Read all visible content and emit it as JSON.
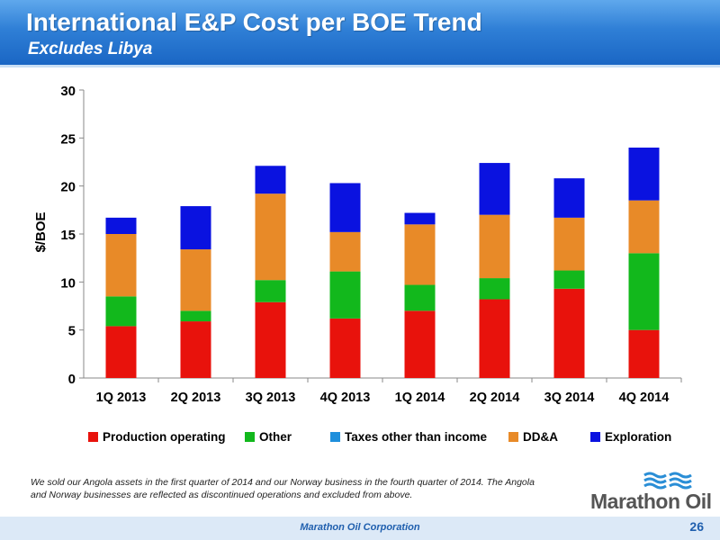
{
  "header": {
    "title": "International E&P Cost per BOE Trend",
    "subtitle": "Excludes Libya"
  },
  "chart_data": {
    "type": "bar",
    "stacked": true,
    "categories": [
      "1Q 2013",
      "2Q 2013",
      "3Q 2013",
      "4Q 2013",
      "1Q 2014",
      "2Q 2014",
      "3Q 2014",
      "4Q 2014"
    ],
    "series": [
      {
        "name": "Production operating",
        "color": "#e8120c",
        "values": [
          5.4,
          5.9,
          7.9,
          6.2,
          7.0,
          8.2,
          9.3,
          5.0
        ]
      },
      {
        "name": "Other",
        "color": "#12b81c",
        "values": [
          3.1,
          1.1,
          2.3,
          4.9,
          2.7,
          2.2,
          1.9,
          8.0
        ]
      },
      {
        "name": "Taxes other than income",
        "color": "#1e8fdc",
        "values": [
          0,
          0,
          0,
          0,
          0,
          0,
          0,
          0
        ]
      },
      {
        "name": "DD&A",
        "color": "#e88a28",
        "values": [
          6.5,
          6.4,
          9.0,
          4.1,
          6.3,
          6.6,
          5.5,
          5.5
        ]
      },
      {
        "name": "Exploration",
        "color": "#0a12e0",
        "values": [
          1.7,
          4.5,
          2.9,
          5.1,
          1.2,
          5.4,
          4.1,
          5.5
        ]
      }
    ],
    "ylabel": "$/BOE",
    "xlabel": "",
    "ylim": [
      0,
      30
    ],
    "yticks": [
      "0",
      "5",
      "10",
      "15",
      "20",
      "25",
      "30"
    ],
    "grid": false,
    "legend_position": "bottom"
  },
  "footnote": "We sold our Angola assets in the first quarter of 2014 and our Norway business in the fourth quarter of 2014. The Angola and Norway businesses are reflected as discontinued operations and excluded from above.",
  "logo": {
    "text": "Marathon Oil",
    "icon": "marathon-oil-wave-logo"
  },
  "footer": {
    "company": "Marathon Oil Corporation",
    "page": "26"
  },
  "colors": {
    "header": "#2f7fd6",
    "footer_text": "#1f5fae"
  }
}
